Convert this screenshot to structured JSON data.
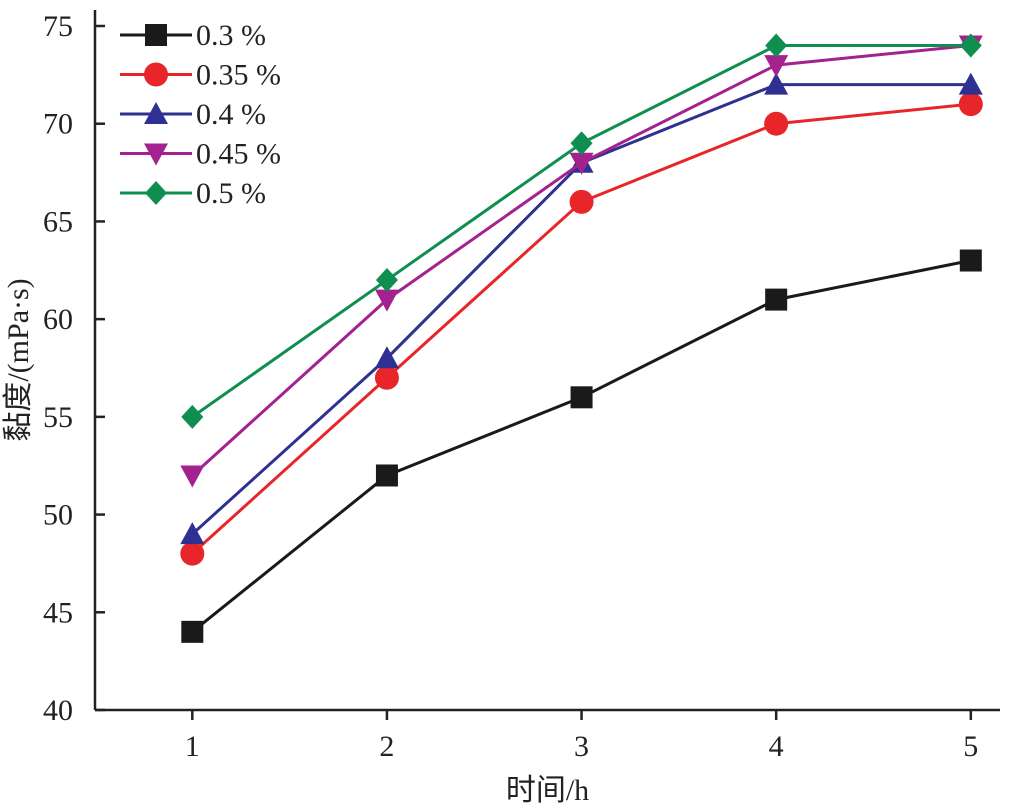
{
  "chart_data": {
    "type": "line",
    "title": "",
    "xlabel": "时间/h",
    "ylabel": "黏度/(mPa·s)",
    "x": [
      1,
      2,
      3,
      4,
      5
    ],
    "xlim": [
      0.5,
      5.15
    ],
    "ylim": [
      40,
      75
    ],
    "yticks": [
      40,
      45,
      50,
      55,
      60,
      65,
      70,
      75
    ],
    "xticks": [
      1,
      2,
      3,
      4,
      5
    ],
    "grid": false,
    "legend_position": "top-left",
    "series": [
      {
        "name": "0.3 %",
        "color": "#1a1a1a",
        "marker": "square",
        "values": [
          44,
          52,
          56,
          61,
          63
        ]
      },
      {
        "name": "0.35 %",
        "color": "#e8262a",
        "marker": "circle",
        "values": [
          48,
          57,
          66,
          70,
          71
        ]
      },
      {
        "name": "0.4 %",
        "color": "#2e3192",
        "marker": "triangle-up",
        "values": [
          49,
          58,
          68,
          72,
          72
        ]
      },
      {
        "name": "0.45 %",
        "color": "#a3228f",
        "marker": "triangle-down",
        "values": [
          52,
          61,
          68,
          73,
          74
        ]
      },
      {
        "name": "0.5 %",
        "color": "#0f8f4f",
        "marker": "diamond",
        "values": [
          55,
          62,
          69,
          74,
          74
        ]
      }
    ]
  }
}
